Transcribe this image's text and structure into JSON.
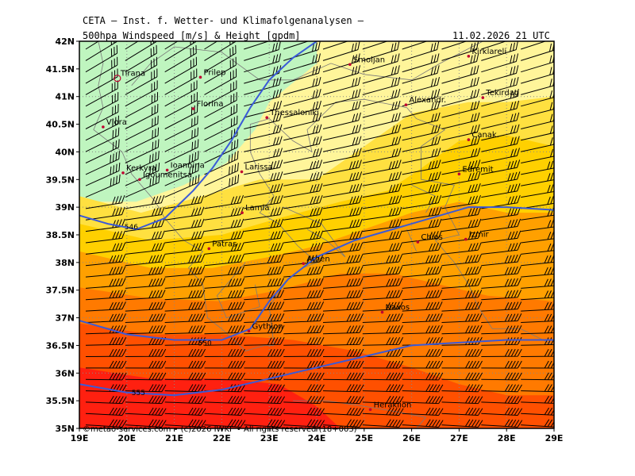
{
  "header": {
    "source": "CETA — Inst. f. Wetter- und Klimafolgenanalysen —",
    "product": "500hpa Windspeed [m/s] & Height [gpdm]",
    "valid_time": "11.02.2026 21 UTC"
  },
  "footer": "©metao-services.com • (c)2026 IWKF • All rights reserved (18+003)",
  "map": {
    "lon_ticks": [
      "19E",
      "20E",
      "21E",
      "22E",
      "23E",
      "24E",
      "25E",
      "26E",
      "27E",
      "28E",
      "29E"
    ],
    "lat_ticks": [
      "42N",
      "41.5N",
      "41N",
      "40.5N",
      "40N",
      "39.5N",
      "39N",
      "38.5N",
      "38N",
      "37.5N",
      "37N",
      "36.5N",
      "36N",
      "35.5N",
      "35N"
    ],
    "lon_range": [
      19,
      29
    ],
    "lat_range": [
      35,
      42
    ],
    "colors": {
      "lightgreen": "#e6f9dd",
      "green": "#bff5bf",
      "paleyellow": "#fff59a",
      "yellow": "#ffe040",
      "gold": "#ffd000",
      "orange": "#ffa000",
      "darkorange": "#ff7a00",
      "redorange": "#ff5000",
      "red": "#ff2010",
      "contour": "#3a5ad8",
      "coast": "#7a7a7a"
    },
    "contours": [
      {
        "label": "546",
        "label_lon": 19.95,
        "label_lat": 38.6,
        "points": [
          [
            19,
            38.85
          ],
          [
            19.6,
            38.7
          ],
          [
            20.2,
            38.6
          ],
          [
            20.8,
            38.8
          ],
          [
            21.4,
            39.3
          ],
          [
            21.8,
            39.7
          ],
          [
            22.2,
            40.2
          ],
          [
            22.6,
            40.8
          ],
          [
            23,
            41.3
          ],
          [
            23.5,
            41.7
          ],
          [
            24,
            42
          ]
        ]
      },
      {
        "label": "550",
        "label_lon": 21.5,
        "label_lat": 36.5,
        "points": [
          [
            19,
            36.95
          ],
          [
            20,
            36.7
          ],
          [
            21,
            36.6
          ],
          [
            22,
            36.6
          ],
          [
            22.6,
            36.8
          ],
          [
            23,
            37.3
          ],
          [
            23.4,
            37.7
          ],
          [
            24,
            38.1
          ],
          [
            24.8,
            38.4
          ],
          [
            25.6,
            38.6
          ],
          [
            26.4,
            38.8
          ],
          [
            27.2,
            39
          ],
          [
            28,
            39
          ],
          [
            29,
            38.95
          ]
        ]
      },
      {
        "label": "555",
        "label_lon": 20.1,
        "label_lat": 35.6,
        "points": [
          [
            19,
            35.8
          ],
          [
            20,
            35.65
          ],
          [
            21,
            35.6
          ],
          [
            22,
            35.7
          ],
          [
            23,
            35.9
          ],
          [
            24,
            36.1
          ],
          [
            25,
            36.3
          ],
          [
            26,
            36.5
          ],
          [
            27,
            36.55
          ],
          [
            28,
            36.6
          ],
          [
            29,
            36.6
          ]
        ]
      }
    ],
    "cities": [
      {
        "name": "Tirana",
        "lon": 19.8,
        "lat": 41.33,
        "big": true
      },
      {
        "name": "Prilep",
        "lon": 21.55,
        "lat": 41.35
      },
      {
        "name": "Florina",
        "lon": 21.4,
        "lat": 40.78
      },
      {
        "name": "Vlora",
        "lon": 19.5,
        "lat": 40.45
      },
      {
        "name": "Thessaloniki",
        "lon": 22.95,
        "lat": 40.62
      },
      {
        "name": "Smoljan",
        "lon": 24.7,
        "lat": 41.58
      },
      {
        "name": "Kirklareli",
        "lon": 27.2,
        "lat": 41.73
      },
      {
        "name": "Tekirdag",
        "lon": 27.5,
        "lat": 40.98
      },
      {
        "name": "Alexandr.",
        "lon": 25.88,
        "lat": 40.85
      },
      {
        "name": "Canak.",
        "lon": 27.2,
        "lat": 40.22
      },
      {
        "name": "Edremit",
        "lon": 27.0,
        "lat": 39.6
      },
      {
        "name": "Kerkyra",
        "lon": 19.92,
        "lat": 39.62
      },
      {
        "name": "Ioannina",
        "lon": 20.85,
        "lat": 39.67
      },
      {
        "name": "Igoumenitsa",
        "lon": 20.27,
        "lat": 39.5
      },
      {
        "name": "Larissa",
        "lon": 22.42,
        "lat": 39.64
      },
      {
        "name": "Lamia",
        "lon": 22.43,
        "lat": 38.9
      },
      {
        "name": "Patras",
        "lon": 21.73,
        "lat": 38.25
      },
      {
        "name": "Athen",
        "lon": 23.72,
        "lat": 37.98
      },
      {
        "name": "Chios",
        "lon": 26.13,
        "lat": 38.37
      },
      {
        "name": "Izmir",
        "lon": 27.14,
        "lat": 38.42
      },
      {
        "name": "Gythion",
        "lon": 22.57,
        "lat": 36.76
      },
      {
        "name": "Naxos",
        "lon": 25.38,
        "lat": 37.1
      },
      {
        "name": "Heraklion",
        "lon": 25.13,
        "lat": 35.34
      }
    ]
  }
}
